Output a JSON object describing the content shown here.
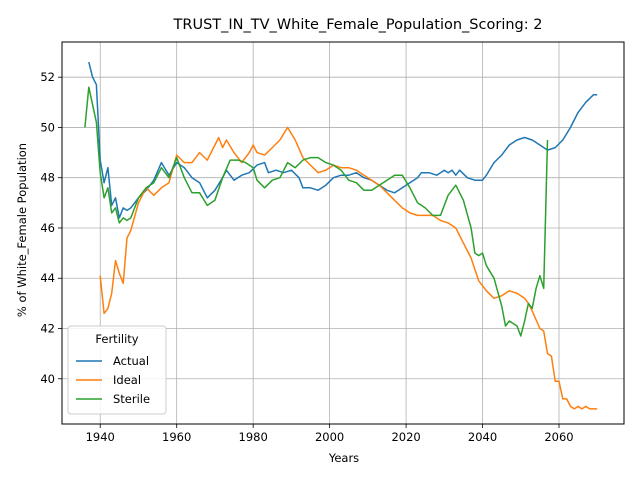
{
  "chart_data": {
    "type": "line",
    "title": "TRUST_IN_TV_White_Female_Population_Scoring: 2",
    "xlabel": "Years",
    "ylabel": "% of White_Female Population",
    "xlim": [
      1930,
      2077
    ],
    "ylim": [
      38.2,
      53.4
    ],
    "xticks": [
      1940,
      1960,
      1980,
      2000,
      2020,
      2040,
      2060
    ],
    "yticks": [
      40,
      42,
      44,
      46,
      48,
      50,
      52
    ],
    "grid": true,
    "legend": {
      "title": "Fertility",
      "placement": "lower-left"
    },
    "series": [
      {
        "name": "Actual",
        "color": "#1f77b4",
        "points": [
          [
            1937,
            52.6
          ],
          [
            1938,
            52.0
          ],
          [
            1939,
            51.7
          ],
          [
            1940,
            48.7
          ],
          [
            1941,
            47.8
          ],
          [
            1942,
            48.4
          ],
          [
            1943,
            46.9
          ],
          [
            1944,
            47.2
          ],
          [
            1945,
            46.4
          ],
          [
            1946,
            46.8
          ],
          [
            1947,
            46.7
          ],
          [
            1948,
            46.8
          ],
          [
            1950,
            47.2
          ],
          [
            1952,
            47.5
          ],
          [
            1954,
            47.9
          ],
          [
            1956,
            48.6
          ],
          [
            1958,
            48.1
          ],
          [
            1960,
            48.6
          ],
          [
            1962,
            48.4
          ],
          [
            1964,
            48.0
          ],
          [
            1966,
            47.8
          ],
          [
            1968,
            47.2
          ],
          [
            1970,
            47.5
          ],
          [
            1972,
            48.0
          ],
          [
            1973,
            48.3
          ],
          [
            1975,
            47.9
          ],
          [
            1977,
            48.1
          ],
          [
            1979,
            48.2
          ],
          [
            1981,
            48.5
          ],
          [
            1983,
            48.6
          ],
          [
            1984,
            48.2
          ],
          [
            1986,
            48.3
          ],
          [
            1988,
            48.2
          ],
          [
            1990,
            48.3
          ],
          [
            1992,
            48.0
          ],
          [
            1993,
            47.6
          ],
          [
            1995,
            47.6
          ],
          [
            1997,
            47.5
          ],
          [
            1999,
            47.7
          ],
          [
            2001,
            48.0
          ],
          [
            2003,
            48.1
          ],
          [
            2005,
            48.1
          ],
          [
            2007,
            48.2
          ],
          [
            2009,
            48.0
          ],
          [
            2011,
            47.9
          ],
          [
            2013,
            47.7
          ],
          [
            2015,
            47.5
          ],
          [
            2017,
            47.4
          ],
          [
            2019,
            47.6
          ],
          [
            2021,
            47.8
          ],
          [
            2023,
            48.0
          ],
          [
            2024,
            48.2
          ],
          [
            2026,
            48.2
          ],
          [
            2028,
            48.1
          ],
          [
            2030,
            48.3
          ],
          [
            2031,
            48.2
          ],
          [
            2032,
            48.3
          ],
          [
            2033,
            48.1
          ],
          [
            2034,
            48.3
          ],
          [
            2036,
            48.0
          ],
          [
            2038,
            47.9
          ],
          [
            2040,
            47.9
          ],
          [
            2041,
            48.1
          ],
          [
            2043,
            48.6
          ],
          [
            2045,
            48.9
          ],
          [
            2047,
            49.3
          ],
          [
            2049,
            49.5
          ],
          [
            2051,
            49.6
          ],
          [
            2053,
            49.5
          ],
          [
            2055,
            49.3
          ],
          [
            2057,
            49.1
          ],
          [
            2059,
            49.2
          ],
          [
            2061,
            49.5
          ],
          [
            2063,
            50.0
          ],
          [
            2065,
            50.6
          ],
          [
            2067,
            51.0
          ],
          [
            2069,
            51.3
          ],
          [
            2070,
            51.3
          ]
        ]
      },
      {
        "name": "Ideal",
        "color": "#ff7f0e",
        "points": [
          [
            1940,
            44.1
          ],
          [
            1941,
            42.6
          ],
          [
            1942,
            42.8
          ],
          [
            1943,
            43.4
          ],
          [
            1944,
            44.7
          ],
          [
            1945,
            44.2
          ],
          [
            1946,
            43.8
          ],
          [
            1947,
            45.6
          ],
          [
            1948,
            45.9
          ],
          [
            1950,
            47.0
          ],
          [
            1952,
            47.6
          ],
          [
            1954,
            47.3
          ],
          [
            1956,
            47.6
          ],
          [
            1958,
            47.8
          ],
          [
            1960,
            48.9
          ],
          [
            1962,
            48.6
          ],
          [
            1964,
            48.6
          ],
          [
            1966,
            49.0
          ],
          [
            1968,
            48.7
          ],
          [
            1970,
            49.3
          ],
          [
            1971,
            49.6
          ],
          [
            1972,
            49.2
          ],
          [
            1973,
            49.5
          ],
          [
            1975,
            49.0
          ],
          [
            1977,
            48.6
          ],
          [
            1979,
            49.0
          ],
          [
            1980,
            49.3
          ],
          [
            1981,
            49.0
          ],
          [
            1983,
            48.9
          ],
          [
            1985,
            49.2
          ],
          [
            1987,
            49.5
          ],
          [
            1989,
            50.0
          ],
          [
            1991,
            49.5
          ],
          [
            1993,
            48.8
          ],
          [
            1995,
            48.5
          ],
          [
            1997,
            48.2
          ],
          [
            1999,
            48.3
          ],
          [
            2001,
            48.5
          ],
          [
            2003,
            48.4
          ],
          [
            2005,
            48.4
          ],
          [
            2007,
            48.3
          ],
          [
            2009,
            48.1
          ],
          [
            2011,
            47.9
          ],
          [
            2013,
            47.7
          ],
          [
            2015,
            47.4
          ],
          [
            2017,
            47.1
          ],
          [
            2019,
            46.8
          ],
          [
            2021,
            46.6
          ],
          [
            2023,
            46.5
          ],
          [
            2025,
            46.5
          ],
          [
            2027,
            46.5
          ],
          [
            2029,
            46.3
          ],
          [
            2031,
            46.2
          ],
          [
            2033,
            46.0
          ],
          [
            2035,
            45.4
          ],
          [
            2037,
            44.8
          ],
          [
            2039,
            43.9
          ],
          [
            2041,
            43.5
          ],
          [
            2043,
            43.2
          ],
          [
            2045,
            43.3
          ],
          [
            2047,
            43.5
          ],
          [
            2049,
            43.4
          ],
          [
            2051,
            43.2
          ],
          [
            2052,
            43.0
          ],
          [
            2053,
            42.7
          ],
          [
            2055,
            42.0
          ],
          [
            2056,
            41.9
          ],
          [
            2057,
            41.0
          ],
          [
            2058,
            40.9
          ],
          [
            2059,
            39.9
          ],
          [
            2060,
            39.9
          ],
          [
            2061,
            39.2
          ],
          [
            2062,
            39.2
          ],
          [
            2063,
            38.9
          ],
          [
            2064,
            38.8
          ],
          [
            2065,
            38.9
          ],
          [
            2066,
            38.8
          ],
          [
            2067,
            38.9
          ],
          [
            2068,
            38.8
          ],
          [
            2069,
            38.8
          ],
          [
            2070,
            38.8
          ]
        ]
      },
      {
        "name": "Sterile",
        "color": "#2ca02c",
        "points": [
          [
            1936,
            50.0
          ],
          [
            1937,
            51.6
          ],
          [
            1938,
            50.9
          ],
          [
            1939,
            50.2
          ],
          [
            1940,
            48.2
          ],
          [
            1941,
            47.2
          ],
          [
            1942,
            47.6
          ],
          [
            1943,
            46.6
          ],
          [
            1944,
            46.8
          ],
          [
            1945,
            46.2
          ],
          [
            1946,
            46.4
          ],
          [
            1947,
            46.3
          ],
          [
            1948,
            46.4
          ],
          [
            1950,
            47.2
          ],
          [
            1952,
            47.6
          ],
          [
            1954,
            47.8
          ],
          [
            1956,
            48.4
          ],
          [
            1958,
            48.0
          ],
          [
            1960,
            48.8
          ],
          [
            1962,
            48.0
          ],
          [
            1964,
            47.4
          ],
          [
            1966,
            47.4
          ],
          [
            1968,
            46.9
          ],
          [
            1970,
            47.1
          ],
          [
            1972,
            48.0
          ],
          [
            1974,
            48.7
          ],
          [
            1976,
            48.7
          ],
          [
            1978,
            48.6
          ],
          [
            1980,
            48.4
          ],
          [
            1981,
            47.9
          ],
          [
            1983,
            47.6
          ],
          [
            1985,
            47.9
          ],
          [
            1987,
            48.0
          ],
          [
            1989,
            48.6
          ],
          [
            1991,
            48.4
          ],
          [
            1993,
            48.7
          ],
          [
            1995,
            48.8
          ],
          [
            1997,
            48.8
          ],
          [
            1999,
            48.6
          ],
          [
            2001,
            48.5
          ],
          [
            2003,
            48.3
          ],
          [
            2005,
            47.9
          ],
          [
            2007,
            47.8
          ],
          [
            2009,
            47.5
          ],
          [
            2011,
            47.5
          ],
          [
            2013,
            47.7
          ],
          [
            2015,
            47.9
          ],
          [
            2017,
            48.1
          ],
          [
            2019,
            48.1
          ],
          [
            2021,
            47.6
          ],
          [
            2023,
            47.0
          ],
          [
            2025,
            46.8
          ],
          [
            2027,
            46.5
          ],
          [
            2029,
            46.5
          ],
          [
            2031,
            47.3
          ],
          [
            2033,
            47.7
          ],
          [
            2035,
            47.1
          ],
          [
            2037,
            46.0
          ],
          [
            2038,
            45.0
          ],
          [
            2039,
            44.9
          ],
          [
            2040,
            45.0
          ],
          [
            2041,
            44.5
          ],
          [
            2043,
            44.0
          ],
          [
            2045,
            42.9
          ],
          [
            2046,
            42.1
          ],
          [
            2047,
            42.3
          ],
          [
            2049,
            42.1
          ],
          [
            2050,
            41.7
          ],
          [
            2051,
            42.3
          ],
          [
            2052,
            43.0
          ],
          [
            2053,
            42.8
          ],
          [
            2054,
            43.6
          ],
          [
            2055,
            44.1
          ],
          [
            2056,
            43.6
          ],
          [
            2057,
            49.5
          ]
        ]
      }
    ]
  }
}
